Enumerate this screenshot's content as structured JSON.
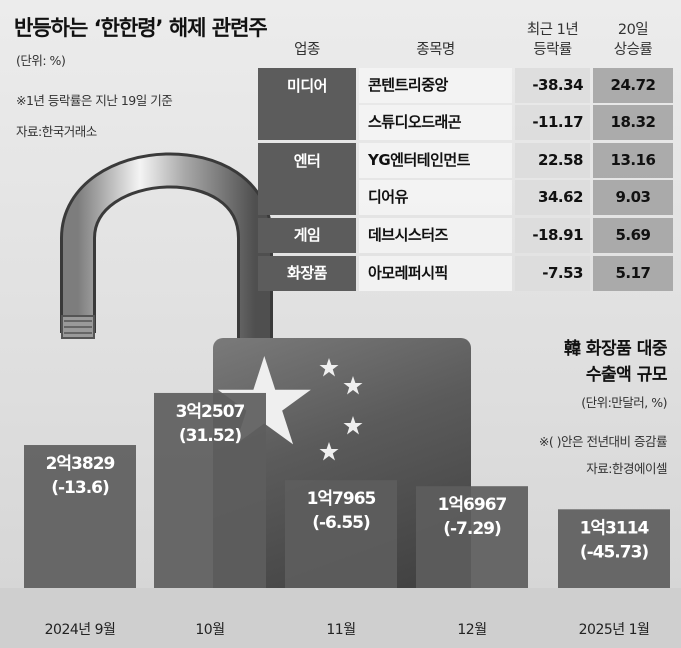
{
  "title": "반등하는 ‘한한령’ 해제 관련주",
  "notes": {
    "unit": "(단위: %)",
    "basis": "※1년 등락률은 지난 19일 기준",
    "source": "자료:한국거래소"
  },
  "table": {
    "headers": {
      "sector": "업종",
      "name": "종목명",
      "v1_line1": "최근 1년",
      "v1_line2": "등락률",
      "v2_line1": "20일",
      "v2_line2": "상승률"
    },
    "sectors": [
      {
        "label": "미디어",
        "rows": 2
      },
      {
        "label": "엔터",
        "rows": 2
      },
      {
        "label": "게임",
        "rows": 1
      },
      {
        "label": "화장품",
        "rows": 1
      }
    ],
    "rows": [
      {
        "name": "콘텐트리중앙",
        "change_1y": "-38.34",
        "rise_20d": "24.72"
      },
      {
        "name": "스튜디오드래곤",
        "change_1y": "-11.17",
        "rise_20d": "18.32"
      },
      {
        "name": "YG엔터테인먼트",
        "change_1y": "22.58",
        "rise_20d": "13.16"
      },
      {
        "name": "디어유",
        "change_1y": "34.62",
        "rise_20d": "9.03"
      },
      {
        "name": "데브시스터즈",
        "change_1y": "-18.91",
        "rise_20d": "5.69"
      },
      {
        "name": "아모레퍼시픽",
        "change_1y": "-7.53",
        "rise_20d": "5.17"
      }
    ]
  },
  "chart_data": {
    "type": "bar",
    "title_line1": "韓 화장품 대중",
    "title_line2": "수출액 규모",
    "unit": "(단위:만달러, %)",
    "note": "※( )안은 전년대비 증감률",
    "source": "자료:한경에이셀",
    "categories": [
      "2024년 9월",
      "10월",
      "11월",
      "12월",
      "2025년 1월"
    ],
    "values": [
      23829,
      32507,
      17965,
      16967,
      13114
    ],
    "value_labels": [
      "2억3829",
      "3억2507",
      "1억7965",
      "1억6967",
      "1억3114"
    ],
    "growth_labels": [
      "(-13.6)",
      "(31.52)",
      "(-6.55)",
      "(-7.29)",
      "(-45.73)"
    ],
    "growth": [
      -13.6,
      31.52,
      -6.55,
      -7.29,
      -45.73
    ],
    "bar_color": "#5d5d5d",
    "ylim": [
      0,
      38000
    ]
  },
  "colors": {
    "sector_bg": "#5c5c5c",
    "bar": "#5d5d5d",
    "china_red_lock": "#666666",
    "star": "#f2f2f2"
  }
}
